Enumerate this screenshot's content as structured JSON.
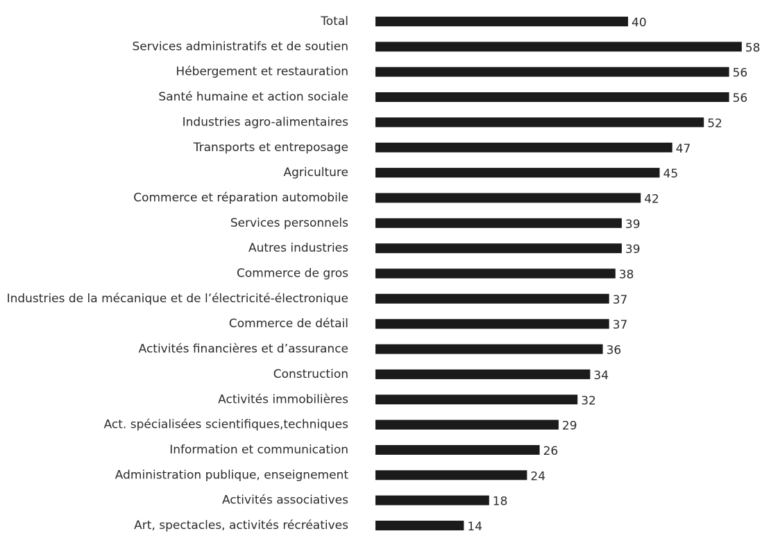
{
  "chart_data": {
    "type": "bar",
    "orientation": "horizontal",
    "categories": [
      "Total",
      "Services administratifs et de soutien",
      "Hébergement et restauration",
      "Santé humaine et action sociale",
      "Industries agro-alimentaires",
      "Transports et entreposage",
      "Agriculture",
      "Commerce et réparation automobile",
      "Services personnels",
      "Autres industries",
      "Commerce de gros",
      "Industries de la mécanique et de l’électricité-électronique",
      "Commerce de détail",
      "Activités financières et d’assurance",
      "Construction",
      "Activités immobilières",
      "Act. spécialisées scientifiques,techniques",
      "Information et communication",
      "Administration publique, enseignement",
      "Activités associatives",
      "Art, spectacles, activités récréatives"
    ],
    "values": [
      40,
      58,
      56,
      56,
      52,
      47,
      45,
      42,
      39,
      39,
      38,
      37,
      37,
      36,
      34,
      32,
      29,
      26,
      24,
      18,
      14
    ],
    "data_labels": [
      "40",
      "58",
      "56",
      "56",
      "52",
      "47",
      "45",
      "42",
      "39",
      "39",
      "38",
      "37",
      "37",
      "36",
      "34",
      "32",
      "29",
      "26",
      "24",
      "18",
      "14"
    ],
    "xlim": [
      0,
      58
    ],
    "grid": false,
    "legend": "none",
    "bar_color": "#1b1b1b",
    "text_color": "#2b2b2b"
  }
}
